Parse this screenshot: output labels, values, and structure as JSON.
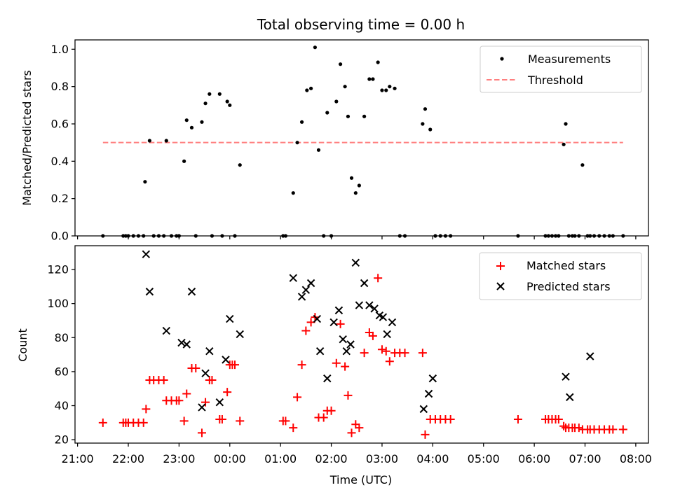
{
  "chart_data": [
    {
      "type": "scatter",
      "title": "Total observing time = 0.00 h",
      "xlabel": "",
      "ylabel": "Matched/Predicted stars",
      "ylim": [
        0,
        1.05
      ],
      "xlim_hours": [
        20.95,
        32.25
      ],
      "yticks": [
        0.0,
        0.2,
        0.4,
        0.6,
        0.8,
        1.0
      ],
      "ytick_labels": [
        "0.0",
        "0.2",
        "0.4",
        "0.6",
        "0.8",
        "1.0"
      ],
      "xticks": [
        21,
        22,
        23,
        24,
        25,
        26,
        27,
        28,
        29,
        30,
        31,
        32
      ],
      "xtick_labels": [
        "",
        "",
        "",
        "",
        "",
        "",
        "",
        "",
        "",
        "",
        "",
        ""
      ],
      "legend": {
        "position": "top-right",
        "entries": [
          "Measurements",
          "Threshold"
        ]
      },
      "threshold": {
        "name": "Threshold",
        "value": 0.5,
        "x_start": 21.5,
        "x_end": 31.75,
        "color": "#ff7f7f"
      },
      "series": [
        {
          "name": "Measurements",
          "color": "#000000",
          "x": [
            21.5,
            21.9,
            21.95,
            22.0,
            22.1,
            22.2,
            22.3,
            22.33,
            22.42,
            22.5,
            22.6,
            22.7,
            22.75,
            22.85,
            22.95,
            23.0,
            23.1,
            23.15,
            23.25,
            23.33,
            23.45,
            23.52,
            23.6,
            23.65,
            23.8,
            23.85,
            23.95,
            24.0,
            24.1,
            24.2,
            25.05,
            25.1,
            25.25,
            25.33,
            25.42,
            25.52,
            25.6,
            25.68,
            25.75,
            25.85,
            25.92,
            26.0,
            26.1,
            26.18,
            26.27,
            26.33,
            26.4,
            26.48,
            26.55,
            26.65,
            26.75,
            26.82,
            26.92,
            27.0,
            27.08,
            27.15,
            27.25,
            27.35,
            27.45,
            27.8,
            27.85,
            27.95,
            28.05,
            28.15,
            28.25,
            28.35,
            29.68,
            30.22,
            30.28,
            30.35,
            30.42,
            30.48,
            30.58,
            30.62,
            30.68,
            30.75,
            30.8,
            30.88,
            30.95,
            31.05,
            31.1,
            31.18,
            31.28,
            31.38,
            31.48,
            31.55,
            31.75
          ],
          "y": [
            0,
            0,
            0,
            0,
            0,
            0,
            0,
            0.29,
            0.51,
            0,
            0,
            0,
            0.51,
            0,
            0,
            0,
            0.4,
            0.62,
            0.58,
            0,
            0.61,
            0.71,
            0.76,
            0,
            0.76,
            0,
            0.72,
            0.7,
            0,
            0.38,
            0,
            0,
            0.23,
            0.5,
            0.61,
            0.78,
            0.79,
            1.01,
            0.46,
            0,
            0.66,
            0,
            0.72,
            0.92,
            0.8,
            0.64,
            0.31,
            0.23,
            0.27,
            0.64,
            0.84,
            0.84,
            0.93,
            0.78,
            0.78,
            0.8,
            0.79,
            0,
            0,
            0.6,
            0.68,
            0.57,
            0,
            0,
            0,
            0,
            0,
            0,
            0,
            0,
            0,
            0,
            0.49,
            0.6,
            0,
            0,
            0,
            0,
            0.38,
            0,
            0,
            0,
            0,
            0,
            0,
            0,
            0
          ]
        }
      ]
    },
    {
      "type": "scatter",
      "title": "",
      "xlabel": "Time (UTC)",
      "ylabel": "Count",
      "ylim": [
        18,
        134
      ],
      "xlim_hours": [
        20.95,
        32.25
      ],
      "yticks": [
        20,
        40,
        60,
        80,
        100,
        120
      ],
      "ytick_labels": [
        "20",
        "40",
        "60",
        "80",
        "100",
        "120"
      ],
      "xticks": [
        21,
        22,
        23,
        24,
        25,
        26,
        27,
        28,
        29,
        30,
        31,
        32
      ],
      "xtick_labels": [
        "21:00",
        "22:00",
        "23:00",
        "00:00",
        "01:00",
        "02:00",
        "03:00",
        "04:00",
        "05:00",
        "06:00",
        "07:00",
        "08:00"
      ],
      "legend": {
        "position": "top-right",
        "entries": [
          "Matched stars",
          "Predicted stars"
        ]
      },
      "series": [
        {
          "name": "Matched stars",
          "color": "#ff0000",
          "marker": "plus",
          "x": [
            21.5,
            21.9,
            21.95,
            22.0,
            22.1,
            22.2,
            22.3,
            22.35,
            22.42,
            22.5,
            22.6,
            22.7,
            22.75,
            22.85,
            22.95,
            23.0,
            23.1,
            23.15,
            23.25,
            23.33,
            23.45,
            23.52,
            23.6,
            23.65,
            23.8,
            23.85,
            23.95,
            24.0,
            24.05,
            24.1,
            24.2,
            25.05,
            25.1,
            25.25,
            25.33,
            25.42,
            25.5,
            25.6,
            25.68,
            25.75,
            25.85,
            25.92,
            26.0,
            26.1,
            26.18,
            26.27,
            26.33,
            26.4,
            26.48,
            26.55,
            26.65,
            26.75,
            26.82,
            26.92,
            27.0,
            27.08,
            27.15,
            27.25,
            27.35,
            27.45,
            27.8,
            27.85,
            27.95,
            28.05,
            28.15,
            28.25,
            28.35,
            29.68,
            30.22,
            30.28,
            30.35,
            30.42,
            30.48,
            30.58,
            30.62,
            30.68,
            30.75,
            30.8,
            30.88,
            30.95,
            31.05,
            31.1,
            31.18,
            31.28,
            31.38,
            31.48,
            31.55,
            31.75
          ],
          "y": [
            30,
            30,
            30,
            30,
            30,
            30,
            30,
            38,
            55,
            55,
            55,
            55,
            43,
            43,
            43,
            43,
            31,
            47,
            62,
            62,
            24,
            42,
            55,
            55,
            32,
            32,
            48,
            64,
            64,
            64,
            31,
            31,
            31,
            27,
            45,
            64,
            84,
            89,
            92,
            33,
            33,
            37,
            37,
            65,
            88,
            63,
            46,
            24,
            29,
            27,
            71,
            83,
            81,
            115,
            73,
            72,
            66,
            71,
            71,
            71,
            71,
            23,
            32,
            32,
            32,
            32,
            32,
            32,
            32,
            32,
            32,
            32,
            32,
            28,
            27,
            27,
            27,
            27,
            27,
            26,
            26,
            26,
            26,
            26,
            26,
            26,
            26,
            26
          ]
        },
        {
          "name": "Predicted stars",
          "color": "#000000",
          "marker": "x",
          "x": [
            22.35,
            22.42,
            22.75,
            23.05,
            23.15,
            23.25,
            23.45,
            23.52,
            23.6,
            23.8,
            23.92,
            24.0,
            24.2,
            25.25,
            25.42,
            25.5,
            25.6,
            25.72,
            25.78,
            25.92,
            26.05,
            26.15,
            26.23,
            26.3,
            26.38,
            26.48,
            26.55,
            26.65,
            26.75,
            26.85,
            26.95,
            27.02,
            27.1,
            27.2,
            27.82,
            27.92,
            28.0,
            30.62,
            30.7,
            31.1
          ],
          "y": [
            129,
            107,
            84,
            77,
            76,
            107,
            39,
            59,
            72,
            42,
            67,
            91,
            82,
            115,
            104,
            108,
            112,
            91,
            72,
            56,
            89,
            96,
            79,
            72,
            76,
            124,
            99,
            112,
            99,
            97,
            93,
            92,
            82,
            89,
            38,
            47,
            56,
            57,
            45,
            69
          ]
        }
      ]
    }
  ]
}
